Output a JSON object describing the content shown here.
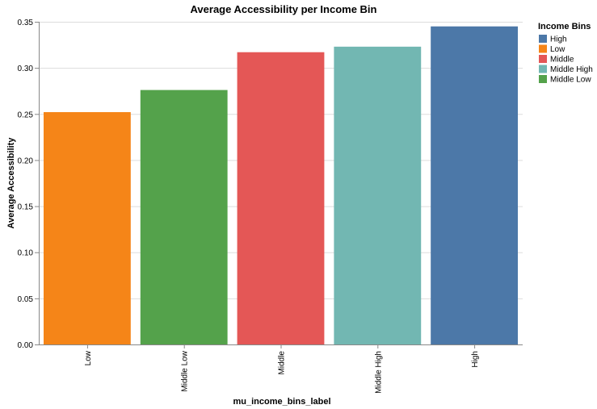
{
  "chart_data": {
    "type": "bar",
    "title": "Average Accessibility per Income Bin",
    "xlabel": "mu_income_bins_label",
    "ylabel": "Average Accessibility",
    "categories": [
      "Low",
      "Middle Low",
      "Middle",
      "Middle High",
      "High"
    ],
    "values": [
      0.252,
      0.276,
      0.317,
      0.323,
      0.345
    ],
    "bar_colors": [
      "#f58518",
      "#54a24b",
      "#e45756",
      "#72b7b2",
      "#4c78a8"
    ],
    "ylim": [
      0,
      0.35
    ],
    "yticks": [
      "0.00",
      "0.05",
      "0.10",
      "0.15",
      "0.20",
      "0.25",
      "0.30",
      "0.35"
    ],
    "grid": true,
    "legend": {
      "title": "Income Bins",
      "position": "right",
      "items": [
        {
          "label": "High",
          "color": "#4c78a8"
        },
        {
          "label": "Low",
          "color": "#f58518"
        },
        {
          "label": "Middle",
          "color": "#e45756"
        },
        {
          "label": "Middle High",
          "color": "#72b7b2"
        },
        {
          "label": "Middle Low",
          "color": "#54a24b"
        }
      ]
    }
  }
}
